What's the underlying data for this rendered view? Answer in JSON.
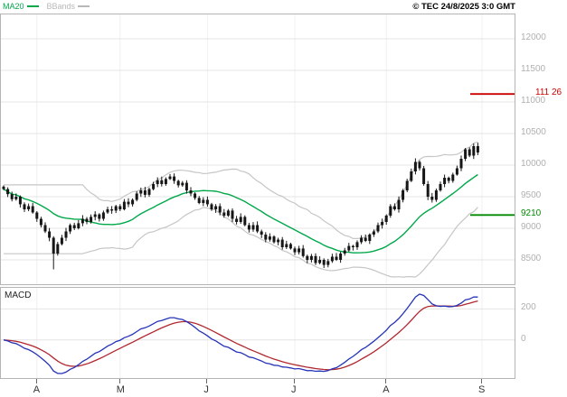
{
  "header": {
    "legend": [
      {
        "label": "MA20",
        "color": "#00a84a"
      },
      {
        "label": "BBands",
        "color": "#b8b8b8"
      }
    ],
    "copyright": "© TEC 24/8/2025 3:0 GMT"
  },
  "macd_panel": {
    "label": "MACD"
  },
  "chart_data": {
    "type": "candlestick",
    "title": "",
    "x_axis": {
      "unit": "months",
      "tick_labels": [
        "A",
        "M",
        "J",
        "J",
        "A",
        "S"
      ],
      "tick_indices": [
        8,
        28,
        49,
        70,
        92,
        115
      ]
    },
    "y_axis": {
      "ticks": [
        12000,
        11500,
        11000,
        10500,
        10000,
        9500,
        9000,
        8500
      ]
    },
    "macd_axis_ticks": [
      200,
      0
    ],
    "closes": [
      9620,
      9540,
      9460,
      9500,
      9380,
      9300,
      9350,
      9250,
      9150,
      9050,
      8950,
      8850,
      8600,
      8750,
      8850,
      8950,
      9050,
      9000,
      9080,
      9150,
      9100,
      9180,
      9220,
      9150,
      9250,
      9300,
      9280,
      9350,
      9300,
      9420,
      9380,
      9450,
      9550,
      9600,
      9530,
      9620,
      9700,
      9760,
      9700,
      9780,
      9820,
      9750,
      9680,
      9720,
      9600,
      9550,
      9480,
      9400,
      9450,
      9380,
      9300,
      9350,
      9250,
      9200,
      9280,
      9150,
      9100,
      9180,
      9050,
      8980,
      9050,
      8950,
      8900,
      8820,
      8870,
      8780,
      8820,
      8700,
      8750,
      8680,
      8620,
      8680,
      8560,
      8500,
      8560,
      8450,
      8500,
      8420,
      8480,
      8550,
      8500,
      8600,
      8650,
      8720,
      8700,
      8780,
      8850,
      8800,
      8900,
      8950,
      9050,
      9100,
      9200,
      9350,
      9300,
      9450,
      9600,
      9750,
      9900,
      10050,
      9950,
      9700,
      9500,
      9450,
      9600,
      9700,
      9800,
      9750,
      9850,
      9950,
      10100,
      10250,
      10150,
      10300,
      10200
    ],
    "spike": {
      "index": 12,
      "low": 8350
    },
    "indicators": {
      "ma": {
        "period": 20,
        "color": "#00a84a"
      },
      "bollinger": {
        "period": 20,
        "stddev": 2,
        "color": "#c6c6c6"
      },
      "macd": {
        "fast": 12,
        "slow": 26,
        "signal": 9,
        "macd_color": "#2633b8",
        "signal_color": "#b02830"
      }
    },
    "alert_lines": [
      {
        "value": 11126,
        "label": "111 26",
        "color": "#cc0000"
      },
      {
        "value": 9210,
        "label": "9210",
        "color": "#008a00"
      }
    ]
  }
}
